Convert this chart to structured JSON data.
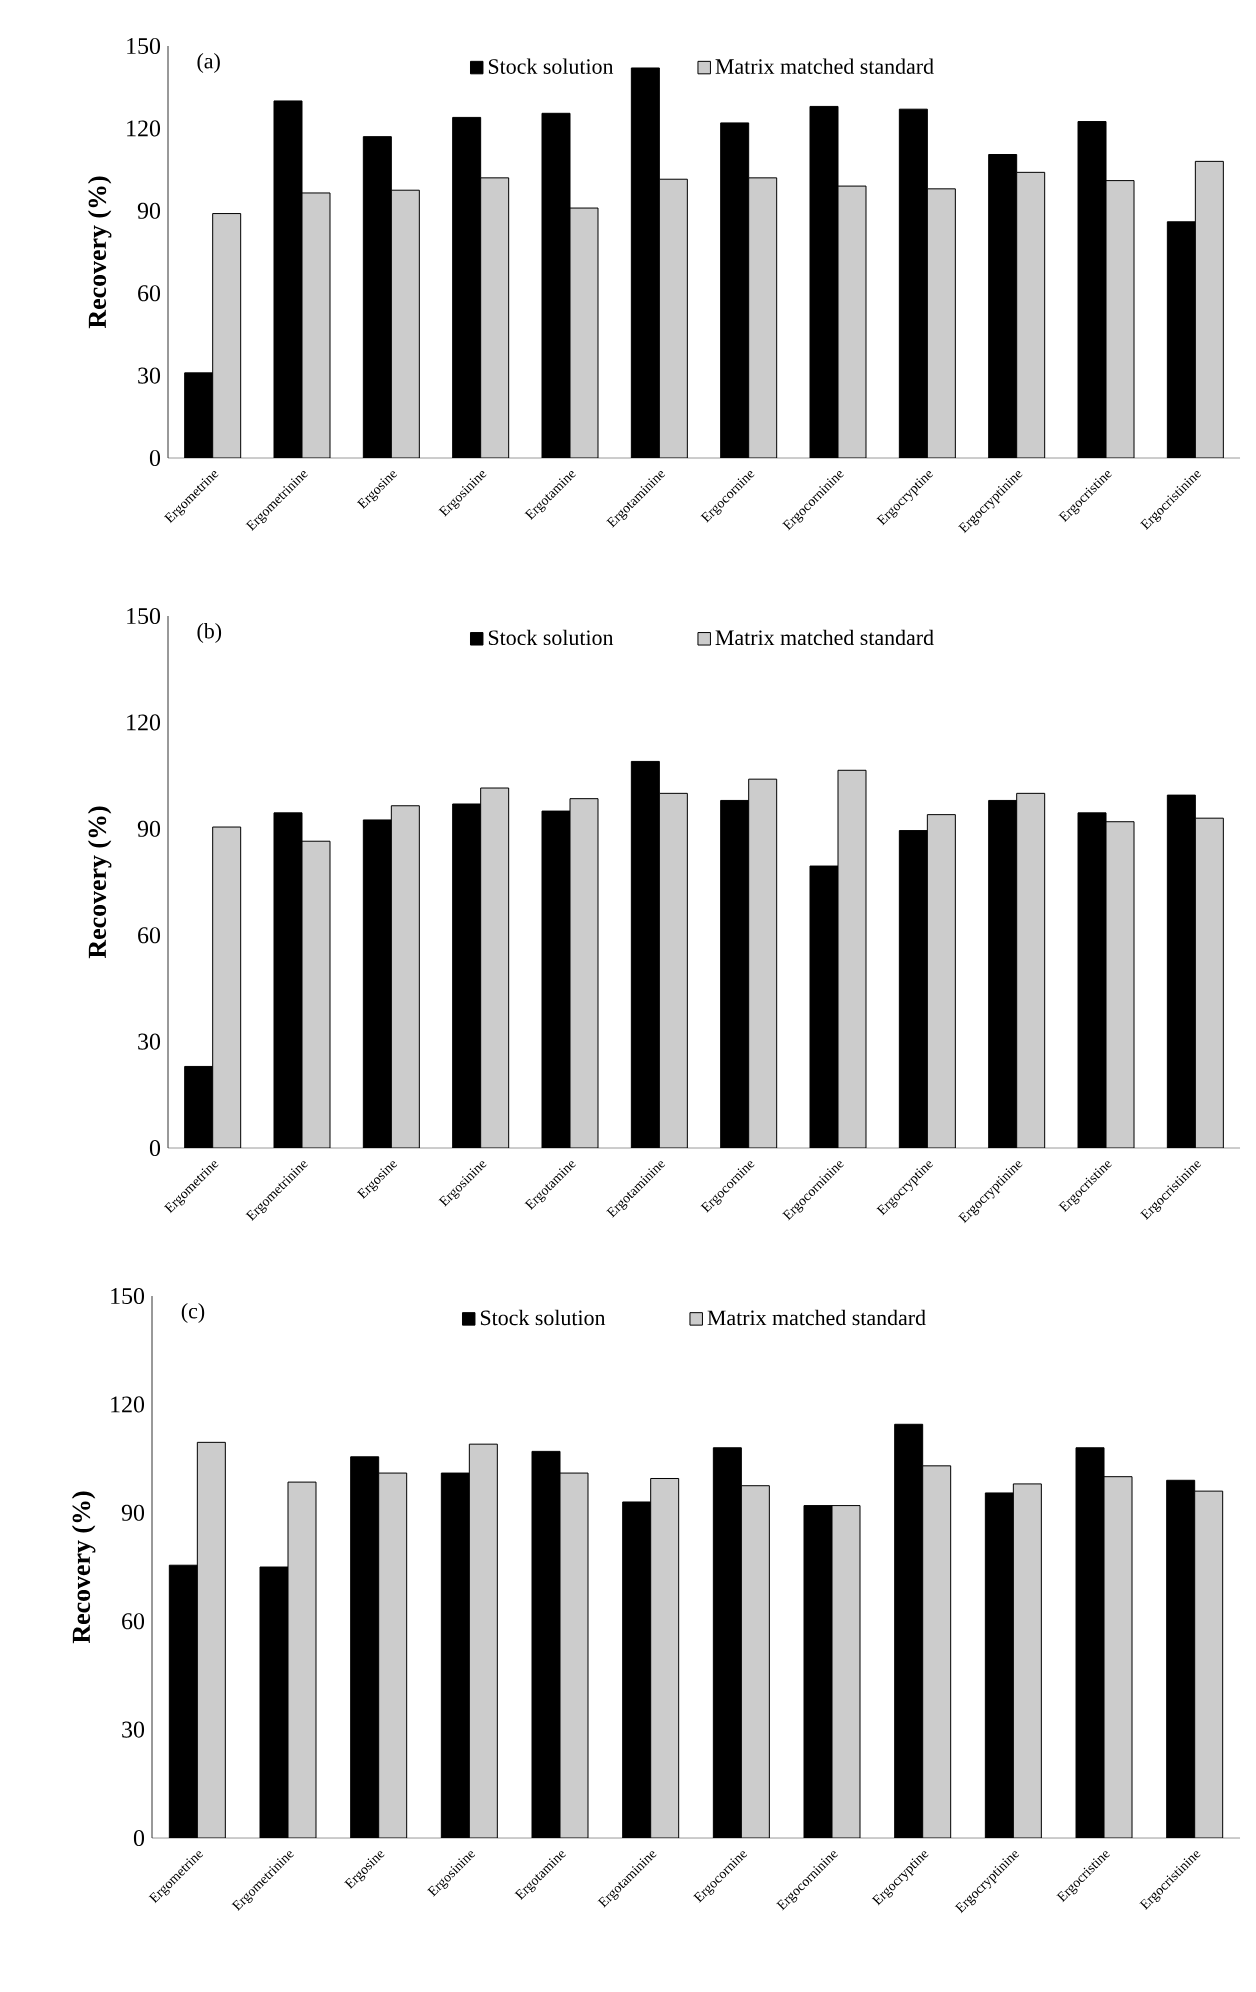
{
  "chart_data": [
    {
      "type": "bar",
      "title": "(a)",
      "ylabel": "Recovery (%)",
      "legend": "top",
      "grid": false,
      "categories": [
        "Ergometrine",
        "Ergometrinine",
        "Ergosine",
        "Ergosinine",
        "Ergotamine",
        "Ergotaminine",
        "Ergocornine",
        "Ergocorninine",
        "Ergocryptine",
        "Ergocryptinine",
        "Ergocristine",
        "Ergocristinine"
      ],
      "ylim": [
        0,
        150
      ],
      "yticks": [
        0,
        30,
        60,
        90,
        120,
        150
      ],
      "series": [
        {
          "name": "Stock solution",
          "color": "#000000",
          "values": [
            31,
            130,
            117,
            124,
            125.5,
            142,
            122,
            128,
            127,
            110.5,
            122.5,
            86
          ]
        },
        {
          "name": "Matrix matched standard",
          "color": "#cccccc",
          "values": [
            89,
            96.5,
            97.5,
            102,
            91,
            101.5,
            102,
            99,
            98,
            104,
            101,
            108
          ]
        }
      ]
    },
    {
      "type": "bar",
      "title": "(b)",
      "ylabel": "Recovery (%)",
      "legend": "top",
      "grid": false,
      "categories": [
        "Ergometrine",
        "Ergometrinine",
        "Ergosine",
        "Ergosinine",
        "Ergotamine",
        "Ergotaminine",
        "Ergocornine",
        "Ergocorninine",
        "Ergocryptine",
        "Ergocryptinine",
        "Ergocristine",
        "Ergocristinine"
      ],
      "ylim": [
        0,
        150
      ],
      "yticks": [
        0,
        30,
        60,
        90,
        120,
        150
      ],
      "series": [
        {
          "name": "Stock solution",
          "color": "#000000",
          "values": [
            23,
            94.5,
            92.5,
            97,
            95,
            109,
            98,
            79.5,
            89.5,
            98,
            94.5,
            99.5
          ]
        },
        {
          "name": "Matrix matched standard",
          "color": "#cccccc",
          "values": [
            90.5,
            86.5,
            96.5,
            101.5,
            98.5,
            100,
            104,
            106.5,
            94,
            100,
            92,
            93
          ]
        }
      ]
    },
    {
      "type": "bar",
      "title": "(c)",
      "ylabel": "Recovery (%)",
      "legend": "top",
      "grid": false,
      "categories": [
        "Ergometrine",
        "Ergometrinine",
        "Ergosine",
        "Ergosinine",
        "Ergotamine",
        "Ergotaminine",
        "Ergocornine",
        "Ergocorninine",
        "Ergocryptine",
        "Ergocryptinine",
        "Ergocristine",
        "Ergocristinine"
      ],
      "ylim": [
        0,
        150
      ],
      "yticks": [
        0,
        30,
        60,
        90,
        120,
        150
      ],
      "series": [
        {
          "name": "Stock solution",
          "color": "#000000",
          "values": [
            75.5,
            75,
            105.5,
            101,
            107,
            93,
            108,
            92,
            114.5,
            95.5,
            108,
            99
          ]
        },
        {
          "name": "Matrix matched standard",
          "color": "#cccccc",
          "values": [
            109.5,
            98.5,
            101,
            109,
            101,
            99.5,
            97.5,
            92,
            103,
            98,
            100,
            96
          ]
        }
      ]
    }
  ]
}
